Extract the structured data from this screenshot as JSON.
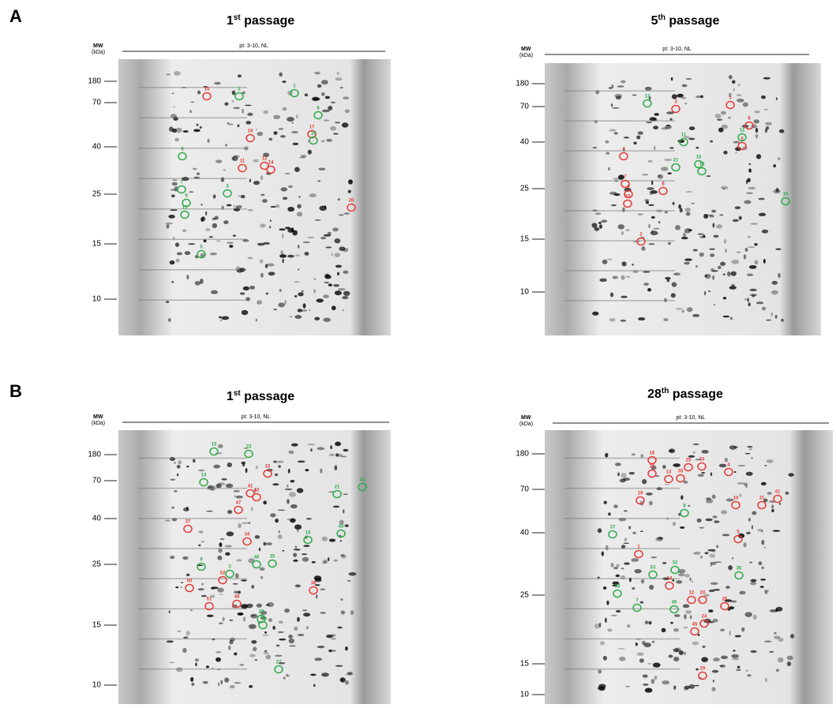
{
  "panels": [
    {
      "label": "A",
      "gels": [
        {
          "number": "1",
          "suffix": "st",
          "rest": " passage",
          "mw": "MW",
          "unit": "(kDa)",
          "pi": "pI: 3-10, NL",
          "mw_ticks": [
            180,
            70,
            40,
            25,
            15,
            10
          ],
          "spots": [
            {
              "n": "15",
              "color": "#e53935"
            },
            {
              "n": "18",
              "color": "#e53935"
            },
            {
              "n": "17",
              "color": "#e53935"
            },
            {
              "n": "12",
              "color": "#e53935"
            },
            {
              "n": "14",
              "color": "#e53935"
            },
            {
              "n": "11",
              "color": "#e53935"
            },
            {
              "n": "20",
              "color": "#e53935"
            },
            {
              "n": "1",
              "color": "#2eaa4a"
            },
            {
              "n": "2",
              "color": "#2eaa4a"
            },
            {
              "n": "6",
              "color": "#2eaa4a"
            },
            {
              "n": "8",
              "color": "#2eaa4a"
            },
            {
              "n": "7",
              "color": "#2eaa4a"
            },
            {
              "n": "9",
              "color": "#2eaa4a"
            },
            {
              "n": "10",
              "color": "#2eaa4a"
            },
            {
              "n": "3",
              "color": "#2eaa4a"
            },
            {
              "n": "5",
              "color": "#2eaa4a"
            },
            {
              "n": "16",
              "color": "#2eaa4a"
            }
          ]
        },
        {
          "number": "5",
          "suffix": "th",
          "rest": " passage",
          "mw": "MW",
          "unit": "(kDa)",
          "pi": "pI: 3-10, NL",
          "mw_ticks": [
            180,
            70,
            40,
            25,
            15,
            10
          ],
          "spots": [
            {
              "n": "1",
              "color": "#e53935"
            },
            {
              "n": "3",
              "color": "#e53935"
            },
            {
              "n": "6",
              "color": "#e53935"
            },
            {
              "n": "5",
              "color": "#e53935"
            },
            {
              "n": "4",
              "color": "#e53935"
            },
            {
              "n": "7",
              "color": "#e53935"
            },
            {
              "n": "8",
              "color": "#e53935"
            },
            {
              "n": "9",
              "color": "#e53935"
            },
            {
              "n": "10",
              "color": "#e53935"
            },
            {
              "n": "2",
              "color": "#e53935"
            },
            {
              "n": "13",
              "color": "#2eaa4a"
            },
            {
              "n": "11",
              "color": "#2eaa4a"
            },
            {
              "n": "12",
              "color": "#2eaa4a"
            },
            {
              "n": "21",
              "color": "#2eaa4a"
            },
            {
              "n": "15",
              "color": "#2eaa4a"
            },
            {
              "n": "14",
              "color": "#2eaa4a"
            },
            {
              "n": "16",
              "color": "#2eaa4a"
            }
          ]
        }
      ]
    },
    {
      "label": "B",
      "gels": [
        {
          "number": "1",
          "suffix": "st",
          "rest": " passage",
          "mw": "MW",
          "unit": "(kDa)",
          "pi": "pI: 3-10, NL",
          "mw_ticks": [
            180,
            70,
            40,
            25,
            15,
            10
          ],
          "spots": [
            {
              "n": "37",
              "color": "#e53935"
            },
            {
              "n": "50",
              "color": "#e53935"
            },
            {
              "n": "51",
              "color": "#e53935"
            },
            {
              "n": "52",
              "color": "#e53935"
            },
            {
              "n": "48",
              "color": "#e53935"
            },
            {
              "n": "36",
              "color": "#e53935"
            },
            {
              "n": "33",
              "color": "#e53935"
            },
            {
              "n": "41",
              "color": "#e53935"
            },
            {
              "n": "42",
              "color": "#e53935"
            },
            {
              "n": "47",
              "color": "#e53935"
            },
            {
              "n": "34",
              "color": "#e53935"
            },
            {
              "n": "15",
              "color": "#2eaa4a"
            },
            {
              "n": "23",
              "color": "#2eaa4a"
            },
            {
              "n": "13",
              "color": "#2eaa4a"
            },
            {
              "n": "21",
              "color": "#2eaa4a"
            },
            {
              "n": "44",
              "color": "#2eaa4a"
            },
            {
              "n": "40",
              "color": "#2eaa4a"
            },
            {
              "n": "27",
              "color": "#2eaa4a"
            },
            {
              "n": "28",
              "color": "#2eaa4a"
            },
            {
              "n": "43",
              "color": "#2eaa4a"
            },
            {
              "n": "9",
              "color": "#2eaa4a"
            },
            {
              "n": "3",
              "color": "#2eaa4a"
            },
            {
              "n": "46",
              "color": "#2eaa4a"
            },
            {
              "n": "35",
              "color": "#2eaa4a"
            },
            {
              "n": "10",
              "color": "#2eaa4a"
            }
          ]
        },
        {
          "number": "28",
          "suffix": "th",
          "rest": " passage",
          "mw": "MW",
          "unit": "(kDa)",
          "pi": "pI: 3-10, NL",
          "mw_ticks": [
            180,
            70,
            40,
            25,
            15,
            10
          ],
          "spots": [
            {
              "n": "16",
              "color": "#e53935"
            },
            {
              "n": "25",
              "color": "#e53935"
            },
            {
              "n": "33",
              "color": "#e53935"
            },
            {
              "n": "30",
              "color": "#e53935"
            },
            {
              "n": "13",
              "color": "#e53935"
            },
            {
              "n": "35",
              "color": "#e53935"
            },
            {
              "n": "4",
              "color": "#e53935"
            },
            {
              "n": "19",
              "color": "#e53935"
            },
            {
              "n": "41",
              "color": "#e53935"
            },
            {
              "n": "31",
              "color": "#e53935"
            },
            {
              "n": "1",
              "color": "#e53935"
            },
            {
              "n": "14",
              "color": "#e53935"
            },
            {
              "n": "12",
              "color": "#e53935"
            },
            {
              "n": "20",
              "color": "#e53935"
            },
            {
              "n": "26",
              "color": "#e53935"
            },
            {
              "n": "24",
              "color": "#e53935"
            },
            {
              "n": "45",
              "color": "#e53935"
            },
            {
              "n": "29",
              "color": "#e53935"
            },
            {
              "n": "10",
              "color": "#e53935"
            },
            {
              "n": "5",
              "color": "#e53935"
            },
            {
              "n": "37",
              "color": "#2eaa4a"
            },
            {
              "n": "34",
              "color": "#2eaa4a"
            },
            {
              "n": "53",
              "color": "#2eaa4a"
            },
            {
              "n": "32",
              "color": "#2eaa4a"
            },
            {
              "n": "7",
              "color": "#2eaa4a"
            },
            {
              "n": "40",
              "color": "#2eaa4a"
            },
            {
              "n": "36",
              "color": "#2eaa4a"
            },
            {
              "n": "8",
              "color": "#2eaa4a"
            }
          ]
        }
      ]
    }
  ]
}
